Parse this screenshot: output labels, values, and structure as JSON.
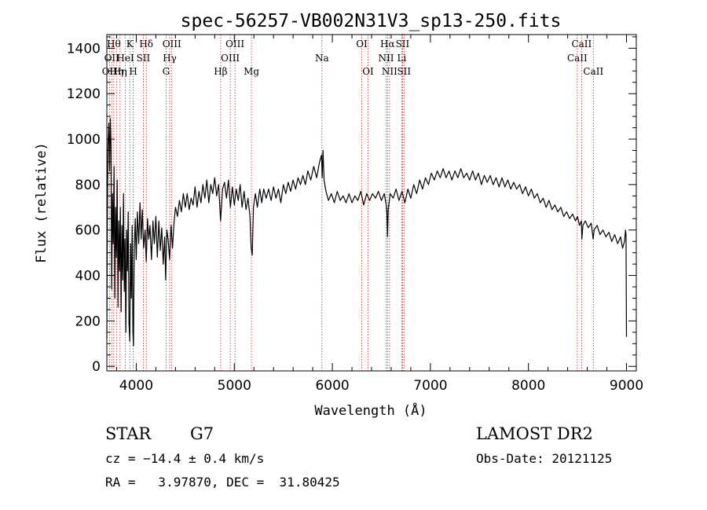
{
  "chart_data": {
    "type": "line",
    "title": "spec-56257-VB002N31V3_sp13-250.fits",
    "xlabel": "Wavelength (Å)",
    "ylabel": "Flux (relative)",
    "xlim": [
      3700,
      9100
    ],
    "ylim": [
      -20,
      1460
    ],
    "x_ticks": [
      4000,
      5000,
      6000,
      7000,
      8000,
      9000
    ],
    "y_ticks": [
      0,
      200,
      400,
      600,
      800,
      1000,
      1200,
      1400
    ],
    "x_minor_step": 200,
    "y_minor_step": 50,
    "grid": false,
    "line_color": "#000000",
    "marker_color": "#cc2222",
    "spectrum": [
      [
        3700,
        120
      ],
      [
        3705,
        640
      ],
      [
        3712,
        980
      ],
      [
        3720,
        1070
      ],
      [
        3728,
        860
      ],
      [
        3735,
        1090
      ],
      [
        3742,
        980
      ],
      [
        3750,
        340
      ],
      [
        3758,
        760
      ],
      [
        3766,
        540
      ],
      [
        3774,
        880
      ],
      [
        3782,
        300
      ],
      [
        3790,
        700
      ],
      [
        3798,
        480
      ],
      [
        3806,
        820
      ],
      [
        3814,
        260
      ],
      [
        3822,
        640
      ],
      [
        3830,
        420
      ],
      [
        3838,
        700
      ],
      [
        3846,
        240
      ],
      [
        3854,
        620
      ],
      [
        3862,
        380
      ],
      [
        3870,
        760
      ],
      [
        3878,
        330
      ],
      [
        3886,
        560
      ],
      [
        3894,
        150
      ],
      [
        3902,
        600
      ],
      [
        3910,
        420
      ],
      [
        3918,
        680
      ],
      [
        3926,
        190
      ],
      [
        3934,
        110
      ],
      [
        3942,
        540
      ],
      [
        3950,
        300
      ],
      [
        3958,
        620
      ],
      [
        3966,
        150
      ],
      [
        3972,
        90
      ],
      [
        3980,
        520
      ],
      [
        3990,
        650
      ],
      [
        4000,
        470
      ],
      [
        4012,
        680
      ],
      [
        4025,
        540
      ],
      [
        4038,
        720
      ],
      [
        4050,
        560
      ],
      [
        4062,
        690
      ],
      [
        4075,
        520
      ],
      [
        4090,
        600
      ],
      [
        4102,
        460
      ],
      [
        4115,
        650
      ],
      [
        4128,
        560
      ],
      [
        4140,
        620
      ],
      [
        4155,
        470
      ],
      [
        4170,
        640
      ],
      [
        4185,
        540
      ],
      [
        4200,
        660
      ],
      [
        4215,
        480
      ],
      [
        4230,
        640
      ],
      [
        4245,
        510
      ],
      [
        4260,
        610
      ],
      [
        4275,
        450
      ],
      [
        4290,
        570
      ],
      [
        4300,
        380
      ],
      [
        4312,
        600
      ],
      [
        4325,
        560
      ],
      [
        4340,
        470
      ],
      [
        4355,
        620
      ],
      [
        4370,
        520
      ],
      [
        4385,
        630
      ],
      [
        4400,
        700
      ],
      [
        4420,
        660
      ],
      [
        4440,
        730
      ],
      [
        4460,
        680
      ],
      [
        4480,
        760
      ],
      [
        4500,
        700
      ],
      [
        4520,
        760
      ],
      [
        4540,
        690
      ],
      [
        4560,
        740
      ],
      [
        4580,
        710
      ],
      [
        4600,
        790
      ],
      [
        4620,
        700
      ],
      [
        4640,
        770
      ],
      [
        4660,
        720
      ],
      [
        4680,
        800
      ],
      [
        4700,
        740
      ],
      [
        4720,
        820
      ],
      [
        4740,
        720
      ],
      [
        4760,
        800
      ],
      [
        4780,
        760
      ],
      [
        4800,
        830
      ],
      [
        4820,
        750
      ],
      [
        4840,
        800
      ],
      [
        4860,
        640
      ],
      [
        4880,
        780
      ],
      [
        4900,
        810
      ],
      [
        4920,
        740
      ],
      [
        4940,
        820
      ],
      [
        4960,
        700
      ],
      [
        4980,
        790
      ],
      [
        5000,
        710
      ],
      [
        5020,
        780
      ],
      [
        5040,
        730
      ],
      [
        5060,
        800
      ],
      [
        5080,
        700
      ],
      [
        5100,
        770
      ],
      [
        5120,
        690
      ],
      [
        5140,
        740
      ],
      [
        5160,
        660
      ],
      [
        5172,
        520
      ],
      [
        5183,
        490
      ],
      [
        5195,
        700
      ],
      [
        5215,
        760
      ],
      [
        5235,
        700
      ],
      [
        5260,
        780
      ],
      [
        5280,
        720
      ],
      [
        5300,
        780
      ],
      [
        5325,
        740
      ],
      [
        5350,
        780
      ],
      [
        5375,
        730
      ],
      [
        5400,
        790
      ],
      [
        5425,
        740
      ],
      [
        5450,
        780
      ],
      [
        5475,
        720
      ],
      [
        5500,
        800
      ],
      [
        5525,
        760
      ],
      [
        5550,
        810
      ],
      [
        5575,
        770
      ],
      [
        5600,
        820
      ],
      [
        5625,
        780
      ],
      [
        5650,
        830
      ],
      [
        5675,
        800
      ],
      [
        5700,
        840
      ],
      [
        5725,
        800
      ],
      [
        5750,
        860
      ],
      [
        5780,
        820
      ],
      [
        5810,
        880
      ],
      [
        5840,
        830
      ],
      [
        5870,
        900
      ],
      [
        5890,
        930
      ],
      [
        5896,
        830
      ],
      [
        5905,
        950
      ],
      [
        5915,
        820
      ],
      [
        5935,
        770
      ],
      [
        5960,
        730
      ],
      [
        5990,
        760
      ],
      [
        6020,
        720
      ],
      [
        6050,
        770
      ],
      [
        6080,
        730
      ],
      [
        6110,
        750
      ],
      [
        6140,
        720
      ],
      [
        6170,
        760
      ],
      [
        6200,
        720
      ],
      [
        6230,
        750
      ],
      [
        6260,
        730
      ],
      [
        6290,
        770
      ],
      [
        6320,
        710
      ],
      [
        6350,
        760
      ],
      [
        6380,
        730
      ],
      [
        6410,
        760
      ],
      [
        6440,
        740
      ],
      [
        6470,
        770
      ],
      [
        6500,
        730
      ],
      [
        6530,
        760
      ],
      [
        6550,
        710
      ],
      [
        6556,
        680
      ],
      [
        6563,
        570
      ],
      [
        6570,
        690
      ],
      [
        6590,
        760
      ],
      [
        6620,
        740
      ],
      [
        6650,
        780
      ],
      [
        6680,
        730
      ],
      [
        6710,
        770
      ],
      [
        6740,
        720
      ],
      [
        6770,
        780
      ],
      [
        6800,
        740
      ],
      [
        6830,
        800
      ],
      [
        6860,
        760
      ],
      [
        6890,
        820
      ],
      [
        6920,
        780
      ],
      [
        6950,
        830
      ],
      [
        6980,
        800
      ],
      [
        7010,
        850
      ],
      [
        7040,
        820
      ],
      [
        7070,
        860
      ],
      [
        7100,
        830
      ],
      [
        7130,
        870
      ],
      [
        7160,
        830
      ],
      [
        7190,
        860
      ],
      [
        7220,
        820
      ],
      [
        7250,
        860
      ],
      [
        7280,
        830
      ],
      [
        7310,
        870
      ],
      [
        7340,
        830
      ],
      [
        7370,
        850
      ],
      [
        7400,
        820
      ],
      [
        7430,
        860
      ],
      [
        7460,
        820
      ],
      [
        7490,
        850
      ],
      [
        7520,
        800
      ],
      [
        7550,
        840
      ],
      [
        7580,
        810
      ],
      [
        7610,
        840
      ],
      [
        7640,
        800
      ],
      [
        7670,
        830
      ],
      [
        7700,
        790
      ],
      [
        7730,
        830
      ],
      [
        7760,
        790
      ],
      [
        7790,
        820
      ],
      [
        7820,
        780
      ],
      [
        7850,
        810
      ],
      [
        7880,
        780
      ],
      [
        7910,
        800
      ],
      [
        7940,
        760
      ],
      [
        7970,
        790
      ],
      [
        8000,
        750
      ],
      [
        8030,
        780
      ],
      [
        8060,
        740
      ],
      [
        8090,
        760
      ],
      [
        8120,
        720
      ],
      [
        8150,
        740
      ],
      [
        8180,
        700
      ],
      [
        8210,
        730
      ],
      [
        8240,
        690
      ],
      [
        8270,
        710
      ],
      [
        8300,
        680
      ],
      [
        8330,
        700
      ],
      [
        8360,
        660
      ],
      [
        8390,
        680
      ],
      [
        8420,
        650
      ],
      [
        8450,
        670
      ],
      [
        8480,
        640
      ],
      [
        8500,
        660
      ],
      [
        8520,
        620
      ],
      [
        8540,
        640
      ],
      [
        8545,
        560
      ],
      [
        8555,
        620
      ],
      [
        8580,
        640
      ],
      [
        8610,
        610
      ],
      [
        8640,
        630
      ],
      [
        8660,
        560
      ],
      [
        8670,
        600
      ],
      [
        8700,
        620
      ],
      [
        8730,
        580
      ],
      [
        8760,
        600
      ],
      [
        8790,
        570
      ],
      [
        8820,
        590
      ],
      [
        8850,
        550
      ],
      [
        8880,
        580
      ],
      [
        8910,
        540
      ],
      [
        8940,
        570
      ],
      [
        8960,
        520
      ],
      [
        8980,
        550
      ],
      [
        8990,
        600
      ],
      [
        8995,
        580
      ],
      [
        9000,
        130
      ]
    ],
    "lines": [
      {
        "wavelength": 3727,
        "label": "OII",
        "row": 2
      },
      {
        "wavelength": 3750,
        "label": "OII",
        "row": 1
      },
      {
        "wavelength": 3771,
        "label": "Hθ",
        "row": 0
      },
      {
        "wavelength": 3798,
        "label": "Hη",
        "row": 2
      },
      {
        "wavelength": 3835,
        "label": "Hη",
        "row": 2
      },
      {
        "wavelength": 3889,
        "label": "HeI",
        "row": 1
      },
      {
        "wavelength": 3934,
        "label": "K",
        "row": 0
      },
      {
        "wavelength": 3969,
        "label": "H",
        "row": 2
      },
      {
        "wavelength": 4072,
        "label": "SII",
        "row": 1
      },
      {
        "wavelength": 4102,
        "label": "Hδ",
        "row": 0
      },
      {
        "wavelength": 4304,
        "label": "G",
        "row": 2
      },
      {
        "wavelength": 4341,
        "label": "Hγ",
        "row": 1
      },
      {
        "wavelength": 4363,
        "label": "OIII",
        "row": 0
      },
      {
        "wavelength": 4861,
        "label": "Hβ",
        "row": 2
      },
      {
        "wavelength": 4959,
        "label": "OIII",
        "row": 1
      },
      {
        "wavelength": 5007,
        "label": "OIII",
        "row": 0
      },
      {
        "wavelength": 5175,
        "label": "Mg",
        "row": 2
      },
      {
        "wavelength": 5894,
        "label": "Na",
        "row": 1
      },
      {
        "wavelength": 6300,
        "label": "OI",
        "row": 0
      },
      {
        "wavelength": 6364,
        "label": "OI",
        "row": 2
      },
      {
        "wavelength": 6548,
        "label": "NII",
        "row": 1
      },
      {
        "wavelength": 6563,
        "label": "Hα",
        "row": 0
      },
      {
        "wavelength": 6583,
        "label": "NII",
        "row": 2
      },
      {
        "wavelength": 6708,
        "label": "Li",
        "row": 1
      },
      {
        "wavelength": 6716,
        "label": "SII",
        "row": 0
      },
      {
        "wavelength": 6731,
        "label": "SII",
        "row": 2
      },
      {
        "wavelength": 8498,
        "label": "CaII",
        "row": 1
      },
      {
        "wavelength": 8542,
        "label": "CaII",
        "row": 0
      },
      {
        "wavelength": 8662,
        "label": "CaII",
        "row": 2
      }
    ]
  },
  "info": {
    "object_class": "STAR",
    "subclass": "G7",
    "cz": "cz = −14.4 ± 0.4 km/s",
    "coords": "RA =   3.97870, DEC =  31.80425",
    "survey": "LAMOST DR2",
    "obs_date": "Obs-Date: 20121125"
  }
}
